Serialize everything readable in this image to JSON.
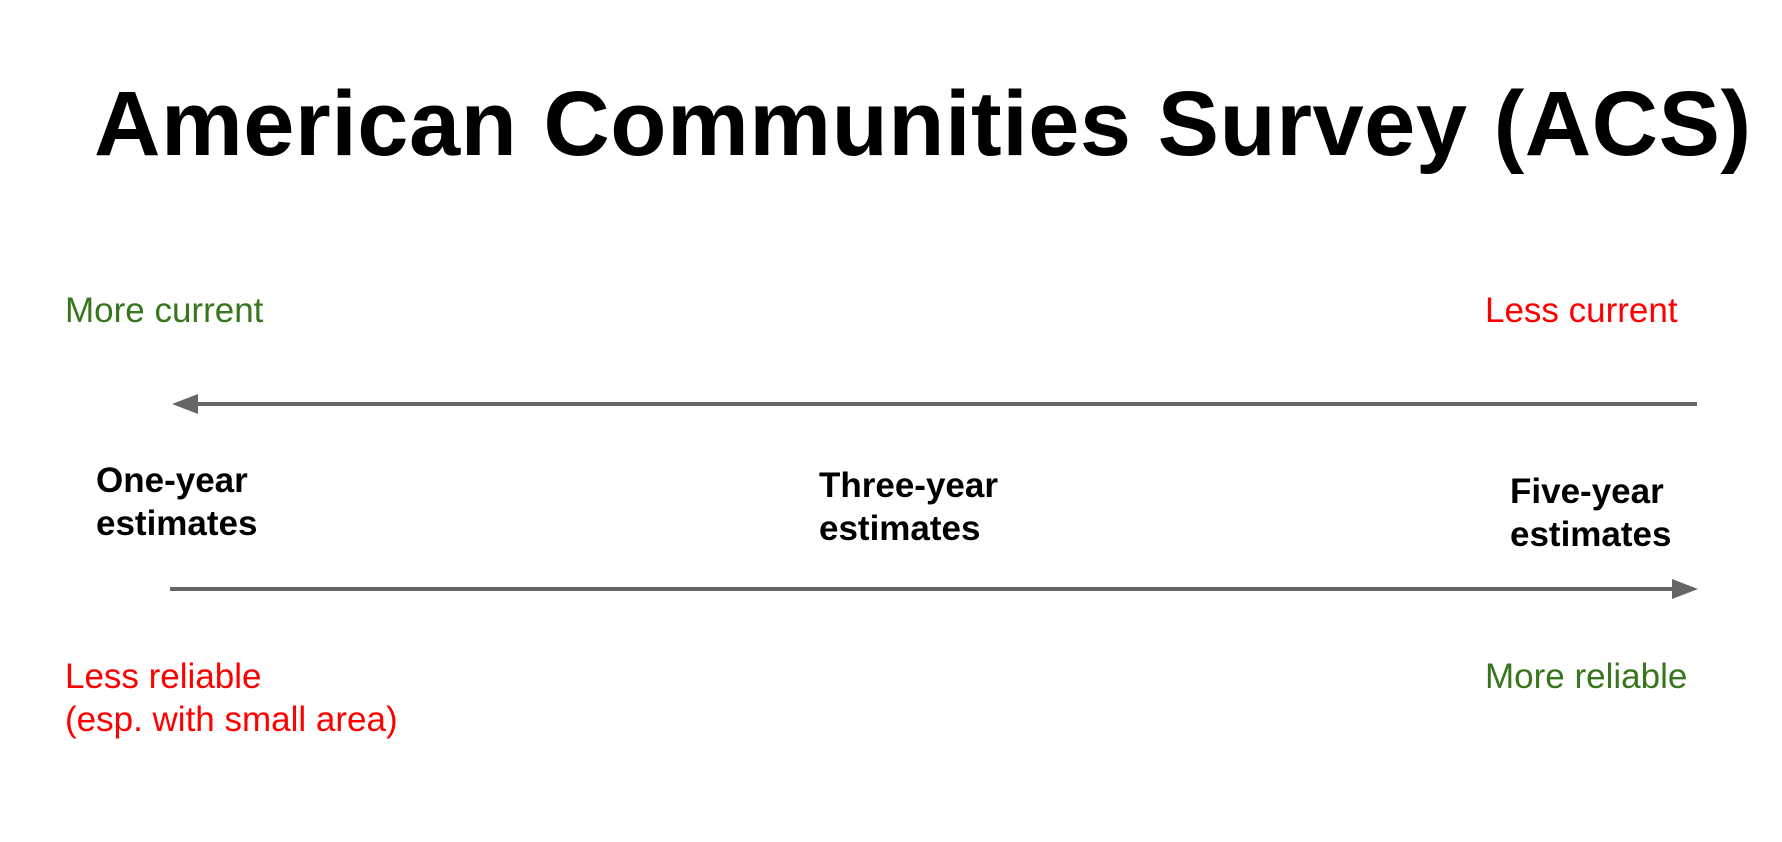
{
  "title": "American Communities Survey (ACS)",
  "top_labels": {
    "left": "More current",
    "right": "Less current"
  },
  "estimates": [
    {
      "line1": "One-year",
      "line2": "estimates"
    },
    {
      "line1": "Three-year",
      "line2": "estimates"
    },
    {
      "line1": "Five-year",
      "line2": "estimates"
    }
  ],
  "bottom_labels": {
    "left_line1": "Less reliable",
    "left_line2": "(esp. with small area)",
    "right": "More reliable"
  },
  "colors": {
    "good": "#38761d",
    "bad": "#ff0000",
    "arrow": "#666666",
    "text": "#000000"
  }
}
